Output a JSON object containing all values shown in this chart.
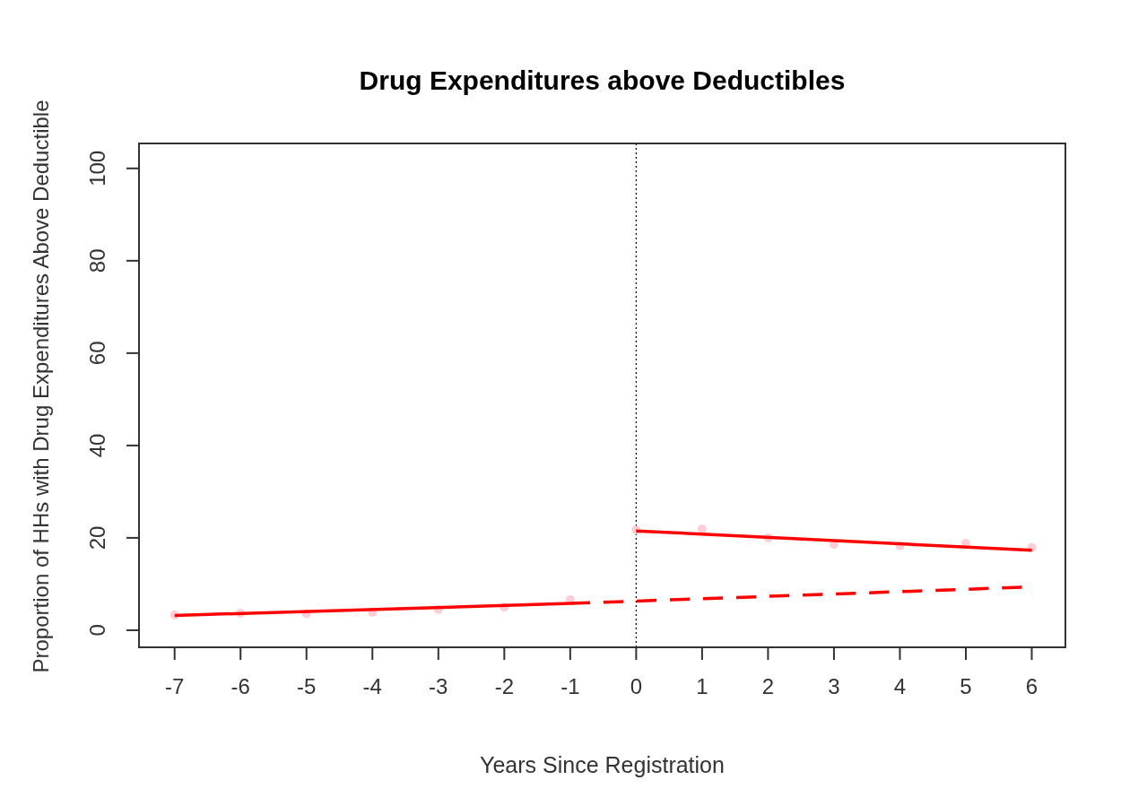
{
  "chart_data": {
    "type": "scatter",
    "title": "Drug Expenditures above Deductibles",
    "xlabel": "Years Since Registration",
    "ylabel": "Proportion of HHs with Drug Expenditures Above Deductible",
    "xlim": [
      -7.54,
      6.51
    ],
    "ylim": [
      -3.7,
      105.4
    ],
    "xticks": [
      -7,
      -6,
      -5,
      -4,
      -3,
      -2,
      -1,
      0,
      1,
      2,
      3,
      4,
      5,
      6
    ],
    "yticks": [
      0,
      20,
      40,
      60,
      80,
      100
    ],
    "grid": false,
    "series": [
      {
        "color": "#ffc0cb",
        "marker": "circle",
        "x": [
          -7,
          -6,
          -5,
          -4,
          -3,
          -2,
          -1,
          0,
          1,
          2,
          3,
          4,
          5,
          6
        ],
        "values": [
          3.3,
          3.7,
          3.6,
          3.9,
          4.5,
          5.0,
          6.6,
          21.7,
          21.9,
          20.0,
          18.6,
          18.3,
          18.8,
          17.9
        ]
      },
      {
        "type": "line",
        "color": "#ff0000",
        "line_style": "solid",
        "x": [
          -7,
          -1
        ],
        "values": [
          3.2,
          5.8
        ]
      },
      {
        "type": "line",
        "color": "#ff0000",
        "line_style": "dashed",
        "x": [
          -1,
          5.85
        ],
        "values": [
          5.8,
          9.3
        ]
      },
      {
        "type": "line",
        "color": "#ff0000",
        "line_style": "solid",
        "x": [
          0,
          6
        ],
        "values": [
          21.5,
          17.3
        ]
      }
    ],
    "ref_lines": [
      {
        "axis": "x",
        "value": 0,
        "line_style": "dotted",
        "color": "#000000"
      }
    ]
  }
}
